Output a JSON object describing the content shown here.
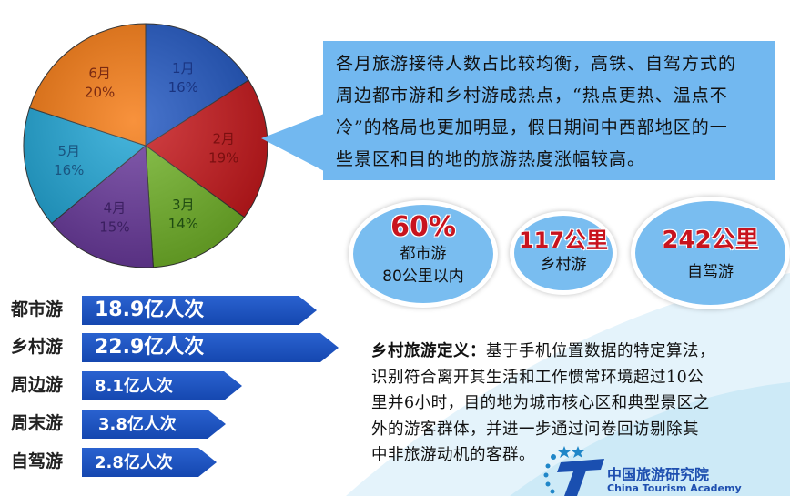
{
  "chart_data": {
    "type": "pie",
    "categories": [
      "1月",
      "2月",
      "3月",
      "4月",
      "5月",
      "6月"
    ],
    "values": [
      16,
      19,
      14,
      15,
      16,
      20
    ],
    "labels": [
      "16%",
      "19%",
      "14%",
      "15%",
      "16%",
      "20%"
    ],
    "colors": [
      "#2157c2",
      "#c9191d",
      "#74b62b",
      "#6b3b9e",
      "#20a6d6",
      "#f67a12"
    ],
    "label_colors": [
      "#1a3480",
      "#7a0f10",
      "#1f4b12",
      "#3b1f60",
      "#1a5580",
      "#7a2a12"
    ],
    "start": "12 o'clock",
    "direction": "clockwise"
  },
  "callout": {
    "lines": [
      "各月旅游接待人数占比较均衡，高铁、自驾方式的",
      "周边都市游和乡村游成热点，“热点更热、温点不",
      "冷”的格局也更加明显，假日期间中西部地区的一",
      "些景区和目的地的旅游热度涨幅较高。"
    ]
  },
  "bubbles": [
    {
      "value": "60%",
      "lines": [
        "都市游",
        "80公里以内"
      ]
    },
    {
      "value": "117公里",
      "lines": [
        "乡村游"
      ]
    },
    {
      "value": "242公里",
      "lines": [
        "自驾游"
      ]
    }
  ],
  "volume_items": [
    {
      "label": "都市游",
      "value": "18.9亿人次"
    },
    {
      "label": "乡村游",
      "value": "22.9亿人次"
    },
    {
      "label": "周边游",
      "value": "8.1亿人次"
    },
    {
      "label": "周末游",
      "value": "3.8亿人次"
    },
    {
      "label": "自驾游",
      "value": "2.8亿人次"
    }
  ],
  "definition": {
    "title": "乡村旅游定义：",
    "first_line_rest": "基于手机位置数据的特定算法，",
    "lines": [
      "识别符合离开其生活和工作惯常环境超过10公",
      "里并6小时，目的地为城市核心区和典型景区之",
      "外的游客群体，并进一步通过问卷回访剔除其",
      "中非旅游动机的客群。"
    ]
  },
  "logo": {
    "name_cn": "中国旅游研究院",
    "name_en": "China Tourism Academy"
  },
  "colors": {
    "accent_blue": "#1a4fbf",
    "bubble_blue": "#79bdf0",
    "highlight_red": "#c8141e"
  }
}
